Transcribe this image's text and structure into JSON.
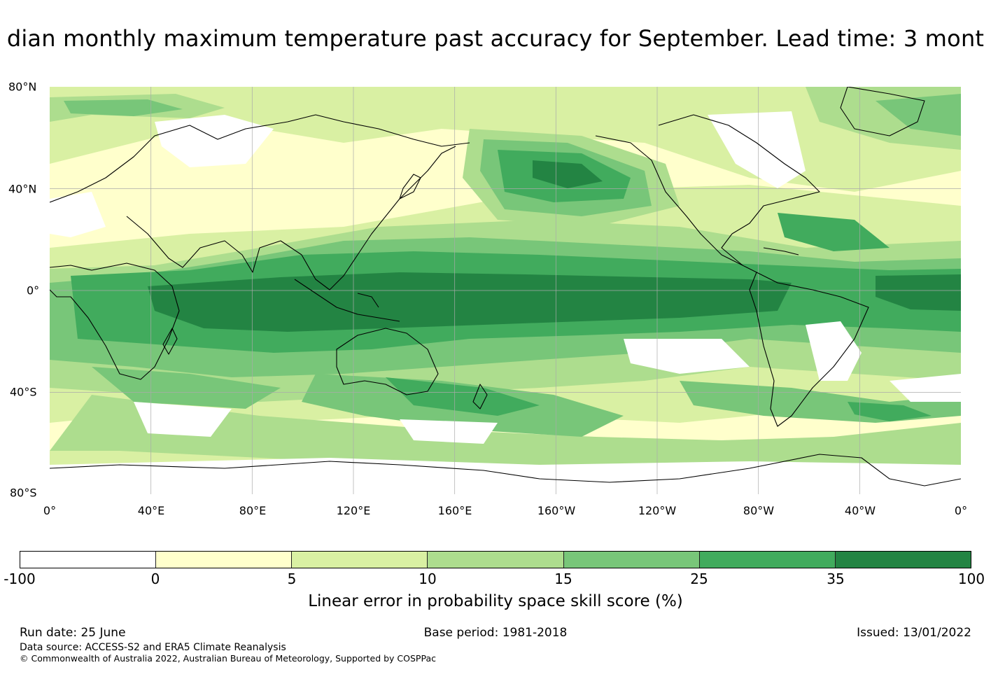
{
  "title": "dian monthly maximum temperature past accuracy for September. Lead time: 3 mont",
  "map": {
    "lat_labels": [
      "80°N",
      "40°N",
      "0°",
      "40°S",
      "80°S"
    ],
    "lon_labels": [
      "0°",
      "40°E",
      "80°E",
      "120°E",
      "160°E",
      "160°W",
      "120°W",
      "80°W",
      "40°W",
      "0°"
    ],
    "colors": {
      "ocean_base": "#ffffcc",
      "coastline": "#000000",
      "gridline": "#aaaaaa"
    }
  },
  "legend": {
    "ticks": [
      "-100",
      "0",
      "5",
      "10",
      "15",
      "25",
      "35",
      "100"
    ],
    "colors": [
      "#ffffff",
      "#ffffcc",
      "#d9f0a3",
      "#addd8e",
      "#78c679",
      "#41ab5d",
      "#238443"
    ],
    "label": "Linear error in probability space skill score (%)"
  },
  "footer": {
    "run_date": "Run date: 25 June",
    "base_period": "Base period: 1981-2018",
    "issued": "Issued: 13/01/2022",
    "data_source": "Data source: ACCESS-S2 and ERA5 Climate Reanalysis",
    "copyright": "© Commonwealth of Australia 2022, Australian Bureau of Meteorology, Supported by COSPPac"
  }
}
